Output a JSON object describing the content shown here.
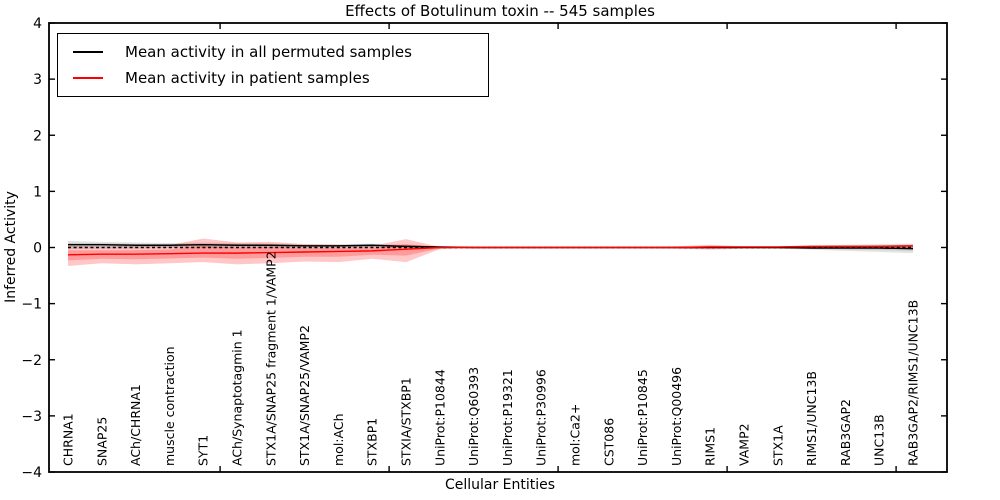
{
  "title": "Effects of Botulinum toxin -- 545 samples",
  "legend": {
    "position": "upper left",
    "items": [
      {
        "label": "Mean activity in all permuted samples",
        "color": "#000000"
      },
      {
        "label": "Mean activity in patient samples",
        "color": "#ff0000"
      }
    ]
  },
  "axes": {
    "xlabel": "Cellular Entities",
    "ylabel": "Inferred Activity"
  },
  "chart_data": {
    "type": "line",
    "title": "Effects of Botulinum toxin -- 545 samples",
    "xlabel": "Cellular Entities",
    "ylabel": "Inferred Activity",
    "ylim": [
      -4,
      4
    ],
    "yticks": [
      4,
      3,
      2,
      1,
      0,
      -1,
      -2,
      -3,
      -4
    ],
    "grid": false,
    "legend_position": "upper left",
    "zero_line": {
      "y": 0,
      "style": "dashed",
      "color": "#000000"
    },
    "categories": [
      "CHRNA1",
      "SNAP25",
      "ACh/CHRNA1",
      "muscle contraction",
      "SYT1",
      "ACh/Synaptotagmin 1",
      "STX1A/SNAP25 fragment 1/VAMP2",
      "STX1A/SNAP25/VAMP2",
      "mol:ACh",
      "STXBP1",
      "STXIA/STXBP1",
      "UniProt:P10844",
      "UniProt:Q60393",
      "UniProt:P19321",
      "UniProt:P30996",
      "mol:Ca2+",
      "CST086",
      "UniProt:P10845",
      "UniProt:Q00496",
      "RIMS1",
      "VAMP2",
      "STX1A",
      "RIMS1/UNC13B",
      "RAB3GAP2",
      "UNC13B",
      "RAB3GAP2/RIMS1/UNC13B"
    ],
    "series": [
      {
        "name": "Mean activity in all permuted samples",
        "color": "#000000",
        "values": [
          0.05,
          0.05,
          0.04,
          0.04,
          0.05,
          0.04,
          0.04,
          0.03,
          0.03,
          0.04,
          0.02,
          0.01,
          0,
          0,
          0,
          0,
          0,
          0,
          0,
          0,
          0,
          0,
          -0.01,
          -0.01,
          -0.01,
          -0.02
        ]
      },
      {
        "name": "Mean activity in patient samples",
        "color": "#ff0000",
        "values": [
          -0.13,
          -0.12,
          -0.12,
          -0.11,
          -0.1,
          -0.1,
          -0.09,
          -0.08,
          -0.07,
          -0.06,
          -0.03,
          0,
          0,
          0,
          0,
          0,
          0,
          0,
          0,
          0.01,
          0.01,
          0.01,
          0.02,
          0.02,
          0.02,
          0.03
        ]
      }
    ],
    "bands": [
      {
        "name": "permuted-samples-ci",
        "series_index": 0,
        "color": "#000000",
        "opacity": 0.11,
        "upper": [
          0.12,
          0.1,
          0.09,
          0.08,
          0.09,
          0.08,
          0.07,
          0.06,
          0.06,
          0.07,
          0.05,
          0.02,
          0.01,
          0.01,
          0.01,
          0.01,
          0.01,
          0.01,
          0.01,
          0.02,
          0.01,
          0.02,
          0.03,
          0.05,
          0.06,
          0.07
        ],
        "lower": [
          -0.03,
          -0.02,
          -0.02,
          -0.01,
          -0.01,
          -0.01,
          -0.01,
          -0.01,
          -0.01,
          -0.01,
          -0.01,
          -0.01,
          -0.01,
          -0.01,
          -0.01,
          -0.01,
          -0.01,
          -0.01,
          -0.01,
          -0.02,
          -0.01,
          -0.02,
          -0.04,
          -0.06,
          -0.08,
          -0.1
        ]
      },
      {
        "name": "patient-samples-ci",
        "series_index": 1,
        "color": "#ff0000",
        "opacity": 0.22,
        "upper": [
          0.03,
          0.02,
          0.03,
          0.04,
          0.16,
          0.09,
          0.1,
          0.06,
          0.05,
          0.03,
          0.15,
          0.01,
          0.01,
          0.01,
          0.01,
          0.01,
          0.01,
          0.01,
          0.02,
          0.05,
          0.02,
          0.02,
          0.03,
          0.03,
          0.04,
          0.05
        ],
        "lower": [
          -0.33,
          -0.28,
          -0.3,
          -0.28,
          -0.26,
          -0.3,
          -0.28,
          -0.25,
          -0.26,
          -0.2,
          -0.26,
          -0.03,
          -0.01,
          -0.01,
          -0.01,
          -0.01,
          -0.01,
          -0.01,
          -0.02,
          -0.04,
          -0.02,
          -0.02,
          -0.02,
          -0.02,
          -0.01,
          -0.01
        ]
      }
    ]
  }
}
